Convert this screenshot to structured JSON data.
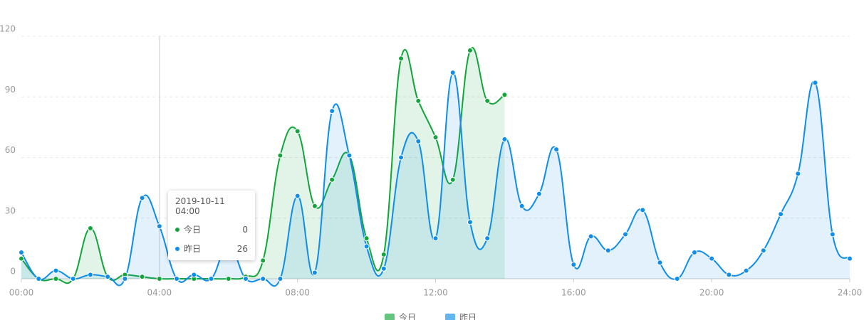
{
  "chart_data": {
    "type": "line",
    "categories": [
      "00:00",
      null,
      null,
      null,
      null,
      null,
      null,
      null,
      "04:00",
      null,
      null,
      null,
      null,
      null,
      null,
      null,
      "08:00",
      null,
      null,
      null,
      null,
      null,
      null,
      null,
      "12:00",
      null,
      null,
      null,
      null,
      null,
      null,
      null,
      "16:00",
      null,
      null,
      null,
      null,
      null,
      null,
      null,
      "20:00",
      null,
      null,
      null,
      null,
      null,
      null,
      null,
      "24:00"
    ],
    "series": [
      {
        "name": "今日",
        "color": "#13a53c",
        "values": [
          10,
          0,
          0,
          0,
          25,
          1,
          2,
          1,
          0,
          0,
          0,
          0,
          0,
          1,
          9,
          61,
          73,
          36,
          49,
          61,
          20,
          12,
          109,
          88,
          70,
          49,
          113,
          88,
          91,
          null,
          null,
          null,
          null,
          null,
          null,
          null,
          null,
          null,
          null,
          null,
          null,
          null,
          null,
          null,
          null,
          null,
          null,
          null,
          null
        ]
      },
      {
        "name": "昨日",
        "color": "#0f8de8",
        "values": [
          13,
          0,
          4,
          0,
          2,
          1,
          0,
          40,
          26,
          0,
          2,
          0,
          17,
          0,
          0,
          0,
          41,
          3,
          83,
          61,
          16,
          5,
          60,
          68,
          20,
          102,
          28,
          20,
          69,
          36,
          42,
          64,
          7,
          21,
          14,
          22,
          34,
          8,
          0,
          13,
          10,
          2,
          4,
          14,
          32,
          52,
          97,
          22,
          10
        ]
      }
    ],
    "ylim": [
      0,
      120
    ],
    "yticks": [
      0,
      30,
      60,
      90,
      120
    ],
    "grid": true,
    "area": true,
    "tooltip": {
      "title": "2019-10-11 04:00",
      "index": 8
    }
  }
}
